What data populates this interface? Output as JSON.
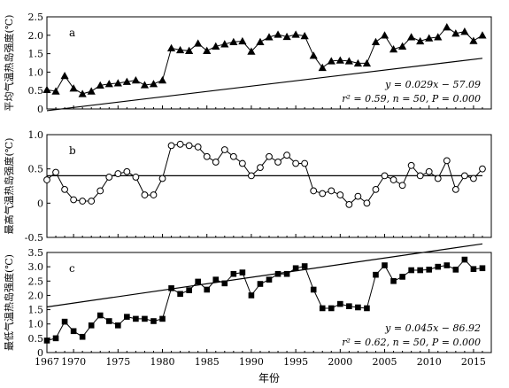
{
  "chart_data": [
    {
      "type": "line",
      "panel_label": "a",
      "ylabel": "平均气温热岛强度(℃)",
      "xlabel": "",
      "xlim": [
        1967,
        2017
      ],
      "ylim": [
        0,
        2.5
      ],
      "yticks": [
        0,
        0.5,
        1.0,
        1.5,
        2.0,
        2.5
      ],
      "ytick_labels": [
        "0",
        "0.5",
        "1.0",
        "1.5",
        "2.0",
        "2.5"
      ],
      "marker": "triangle-filled",
      "x": [
        1967,
        1968,
        1969,
        1970,
        1971,
        1972,
        1973,
        1974,
        1975,
        1976,
        1977,
        1978,
        1979,
        1980,
        1981,
        1982,
        1983,
        1984,
        1985,
        1986,
        1987,
        1988,
        1989,
        1990,
        1991,
        1992,
        1993,
        1994,
        1995,
        1996,
        1997,
        1998,
        1999,
        2000,
        2001,
        2002,
        2003,
        2004,
        2005,
        2006,
        2007,
        2008,
        2009,
        2010,
        2011,
        2012,
        2013,
        2014,
        2015,
        2016
      ],
      "y": [
        0.52,
        0.48,
        0.9,
        0.56,
        0.41,
        0.48,
        0.64,
        0.68,
        0.7,
        0.74,
        0.78,
        0.65,
        0.68,
        0.78,
        1.65,
        1.6,
        1.58,
        1.78,
        1.58,
        1.7,
        1.76,
        1.82,
        1.84,
        1.56,
        1.82,
        1.95,
        2.02,
        1.96,
        2.02,
        1.98,
        1.45,
        1.12,
        1.3,
        1.32,
        1.3,
        1.24,
        1.24,
        1.82,
        2.0,
        1.62,
        1.7,
        1.95,
        1.84,
        1.92,
        1.95,
        2.22,
        2.05,
        2.1,
        1.85,
        2.0
      ],
      "trend": {
        "slope": 0.029,
        "intercept": -57.09
      },
      "eq_line": "y = 0.029x − 57.09",
      "stats_line": "r² = 0.59, n = 50, P = 0.000"
    },
    {
      "type": "line",
      "panel_label": "b",
      "ylabel": "最高气温热岛强度(℃)",
      "xlabel": "",
      "xlim": [
        1967,
        2017
      ],
      "ylim": [
        -0.5,
        1.0
      ],
      "yticks": [
        -0.5,
        0,
        0.5,
        1.0
      ],
      "ytick_labels": [
        "-0.5",
        "0",
        "0.5",
        "1.0"
      ],
      "marker": "circle-open",
      "x": [
        1967,
        1968,
        1969,
        1970,
        1971,
        1972,
        1973,
        1974,
        1975,
        1976,
        1977,
        1978,
        1979,
        1980,
        1981,
        1982,
        1983,
        1984,
        1985,
        1986,
        1987,
        1988,
        1989,
        1990,
        1991,
        1992,
        1993,
        1994,
        1995,
        1996,
        1997,
        1998,
        1999,
        2000,
        2001,
        2002,
        2003,
        2004,
        2005,
        2006,
        2007,
        2008,
        2009,
        2010,
        2011,
        2012,
        2013,
        2014,
        2015,
        2016
      ],
      "y": [
        0.34,
        0.45,
        0.2,
        0.05,
        0.03,
        0.03,
        0.18,
        0.38,
        0.43,
        0.46,
        0.38,
        0.12,
        0.12,
        0.36,
        0.84,
        0.86,
        0.84,
        0.82,
        0.68,
        0.6,
        0.78,
        0.68,
        0.58,
        0.4,
        0.52,
        0.68,
        0.6,
        0.7,
        0.58,
        0.58,
        0.18,
        0.14,
        0.18,
        0.12,
        -0.02,
        0.1,
        0.0,
        0.2,
        0.4,
        0.34,
        0.26,
        0.55,
        0.4,
        0.46,
        0.36,
        0.62,
        0.2,
        0.4,
        0.36,
        0.5
      ],
      "trend": {
        "slope": 0,
        "intercept": 0.4
      }
    },
    {
      "type": "line",
      "panel_label": "c",
      "ylabel": "最低气温热岛强度(℃)",
      "xlabel": "年份",
      "xlim": [
        1967,
        2017
      ],
      "ylim": [
        0,
        3.5
      ],
      "yticks": [
        0,
        0.5,
        1.0,
        1.5,
        2.0,
        2.5,
        3.0,
        3.5
      ],
      "ytick_labels": [
        "0",
        "0.5",
        "1.0",
        "1.5",
        "2.0",
        "2.5",
        "3.0",
        "3.5"
      ],
      "xticks": [
        1967,
        1970,
        1975,
        1980,
        1985,
        1990,
        1995,
        2000,
        2005,
        2010,
        2015
      ],
      "xtick_labels": [
        "1967",
        "1970",
        "1975",
        "1980",
        "1985",
        "1990",
        "1995",
        "2000",
        "2005",
        "2010",
        "2015"
      ],
      "marker": "square-filled",
      "x": [
        1967,
        1968,
        1969,
        1970,
        1971,
        1972,
        1973,
        1974,
        1975,
        1976,
        1977,
        1978,
        1979,
        1980,
        1981,
        1982,
        1983,
        1984,
        1985,
        1986,
        1987,
        1988,
        1989,
        1990,
        1991,
        1992,
        1993,
        1994,
        1995,
        1996,
        1997,
        1998,
        1999,
        2000,
        2001,
        2002,
        2003,
        2004,
        2005,
        2006,
        2007,
        2008,
        2009,
        2010,
        2011,
        2012,
        2013,
        2014,
        2015,
        2016
      ],
      "y": [
        0.42,
        0.5,
        1.08,
        0.75,
        0.55,
        0.95,
        1.3,
        1.1,
        0.95,
        1.25,
        1.18,
        1.18,
        1.1,
        1.18,
        2.25,
        2.05,
        2.18,
        2.48,
        2.2,
        2.55,
        2.42,
        2.75,
        2.8,
        2.0,
        2.4,
        2.55,
        2.75,
        2.75,
        2.95,
        3.02,
        2.2,
        1.55,
        1.55,
        1.7,
        1.62,
        1.58,
        1.55,
        2.72,
        3.05,
        2.5,
        2.65,
        2.88,
        2.88,
        2.9,
        3.0,
        3.05,
        2.9,
        3.25,
        2.92,
        2.95
      ],
      "trend": {
        "slope": 0.045,
        "intercept": -86.92
      },
      "eq_line": "y = 0.045x − 86.92",
      "stats_line": "r² = 0.62, n = 50, P = 0.000"
    }
  ]
}
